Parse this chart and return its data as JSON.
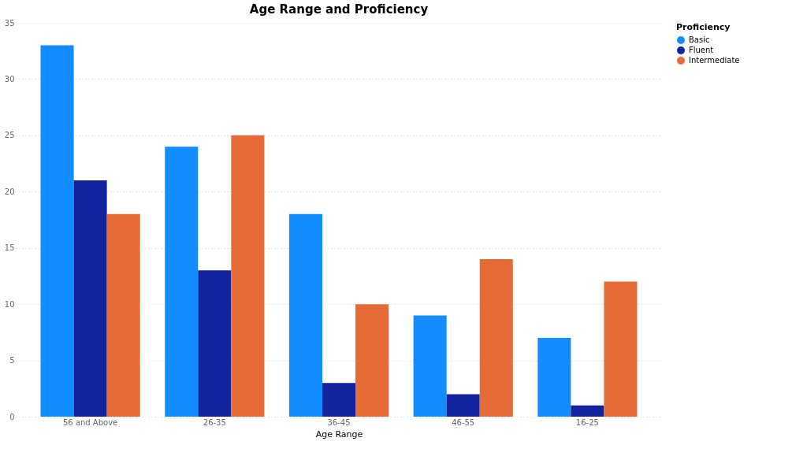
{
  "chart_data": {
    "type": "bar",
    "title": "Age Range and Proficiency",
    "xlabel": "Age Range",
    "legend_title": "Proficiency",
    "categories": [
      "56 and Above",
      "26-35",
      "36-45",
      "46-55",
      "16-25"
    ],
    "series": [
      {
        "name": "Basic",
        "color": "#118dff",
        "values": [
          33,
          24,
          18,
          9,
          7
        ]
      },
      {
        "name": "Fluent",
        "color": "#12239e",
        "values": [
          21,
          13,
          3,
          2,
          1
        ]
      },
      {
        "name": "Intermediate",
        "color": "#e66c37",
        "values": [
          18,
          25,
          10,
          14,
          12
        ]
      }
    ],
    "ylim": [
      0,
      35
    ],
    "yticks": [
      0,
      5,
      10,
      15,
      20,
      25,
      30,
      35
    ],
    "grid": "y",
    "legend": "right"
  }
}
